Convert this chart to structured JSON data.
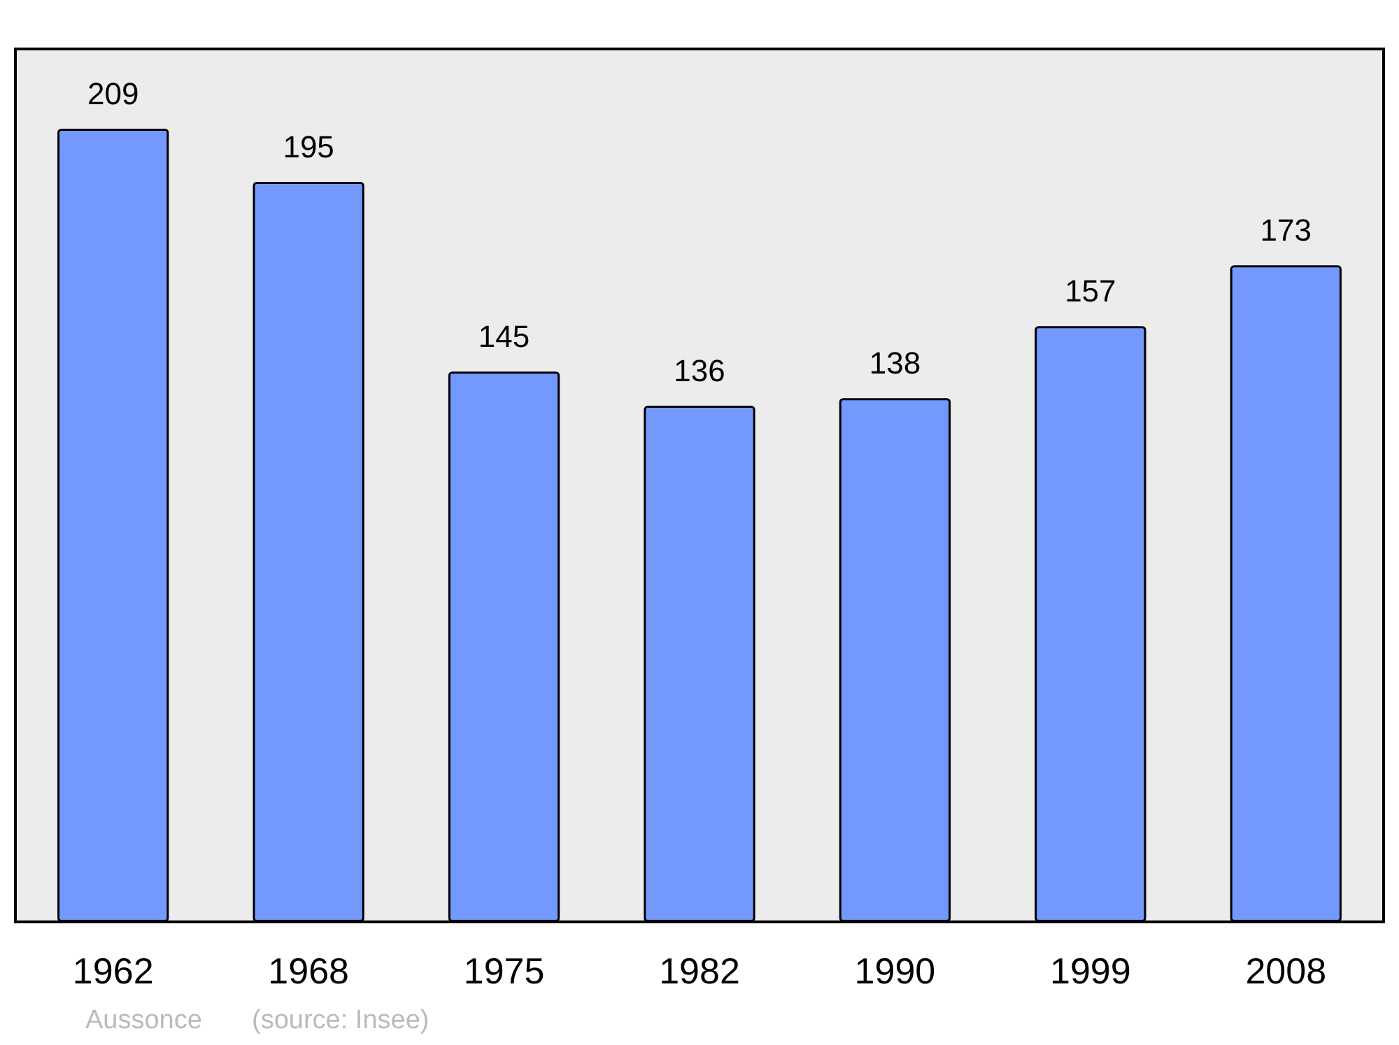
{
  "chart_data": {
    "type": "bar",
    "categories": [
      "1962",
      "1968",
      "1975",
      "1982",
      "1990",
      "1999",
      "2008"
    ],
    "values": [
      209,
      195,
      145,
      136,
      138,
      157,
      173
    ],
    "color": "#7399ff",
    "data_labels": true,
    "annotations": [
      "Aussonce",
      "(source: Insee)"
    ]
  }
}
